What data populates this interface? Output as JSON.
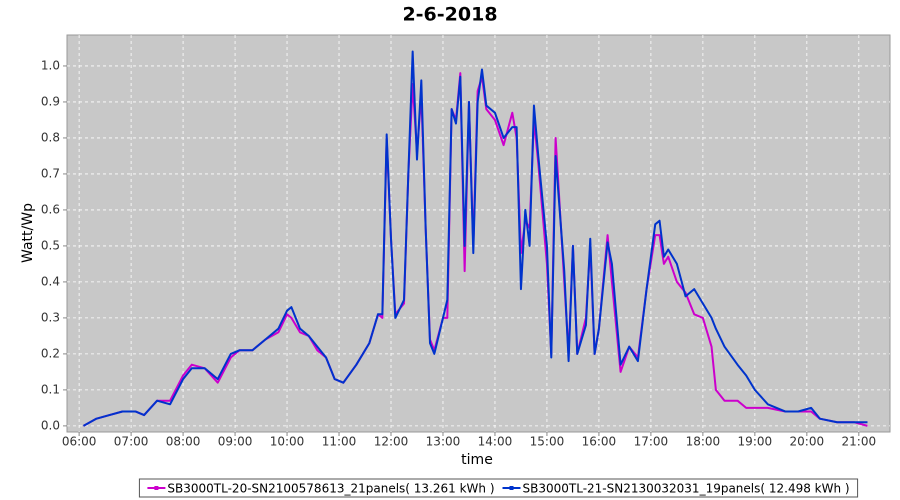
{
  "chart_data": {
    "type": "line",
    "title": "2-6-2018",
    "x_label": "time",
    "y_label": "Watt/Wp",
    "x": [
      "06:05",
      "06:20",
      "06:35",
      "06:50",
      "07:05",
      "07:15",
      "07:30",
      "07:45",
      "08:00",
      "08:10",
      "08:25",
      "08:40",
      "08:55",
      "09:05",
      "09:20",
      "09:35",
      "09:50",
      "10:00",
      "10:05",
      "10:15",
      "10:25",
      "10:35",
      "10:45",
      "10:55",
      "11:05",
      "11:20",
      "11:35",
      "11:45",
      "11:50",
      "11:55",
      "12:00",
      "12:05",
      "12:15",
      "12:20",
      "12:25",
      "12:30",
      "12:35",
      "12:40",
      "12:45",
      "12:50",
      "13:00",
      "13:05",
      "13:10",
      "13:15",
      "13:20",
      "13:25",
      "13:30",
      "13:35",
      "13:40",
      "13:45",
      "13:50",
      "14:00",
      "14:10",
      "14:20",
      "14:25",
      "14:30",
      "14:35",
      "14:40",
      "14:45",
      "14:50",
      "15:00",
      "15:05",
      "15:10",
      "15:20",
      "15:25",
      "15:30",
      "15:35",
      "15:45",
      "15:50",
      "15:55",
      "16:00",
      "16:10",
      "16:15",
      "16:25",
      "16:35",
      "16:45",
      "16:55",
      "17:05",
      "17:10",
      "17:15",
      "17:20",
      "17:30",
      "17:40",
      "17:50",
      "18:00",
      "18:10",
      "18:15",
      "18:25",
      "18:40",
      "18:50",
      "19:00",
      "19:15",
      "19:35",
      "19:50",
      "20:05",
      "20:15",
      "20:35",
      "20:55",
      "21:10"
    ],
    "series": [
      {
        "name": "SB3000TL-20-SN2100578613_21panels( 13.261 kWh )",
        "color": "#cc00cc",
        "values": [
          0.0,
          0.02,
          0.03,
          0.04,
          0.04,
          0.03,
          0.07,
          0.07,
          0.14,
          0.17,
          0.16,
          0.12,
          0.19,
          0.21,
          0.21,
          0.24,
          0.26,
          0.31,
          0.3,
          0.26,
          0.25,
          0.21,
          0.19,
          0.13,
          0.12,
          0.17,
          0.23,
          0.31,
          0.3,
          0.8,
          0.52,
          0.31,
          0.34,
          0.7,
          0.95,
          0.76,
          0.92,
          0.55,
          0.24,
          0.21,
          0.3,
          0.3,
          0.88,
          0.85,
          0.98,
          0.43,
          0.9,
          0.5,
          0.93,
          0.97,
          0.88,
          0.85,
          0.78,
          0.87,
          0.8,
          0.48,
          0.57,
          0.55,
          0.85,
          0.73,
          0.45,
          0.2,
          0.8,
          0.4,
          0.2,
          0.5,
          0.2,
          0.3,
          0.5,
          0.2,
          0.27,
          0.53,
          0.4,
          0.15,
          0.22,
          0.19,
          0.38,
          0.53,
          0.53,
          0.45,
          0.47,
          0.4,
          0.37,
          0.31,
          0.3,
          0.22,
          0.1,
          0.07,
          0.07,
          0.05,
          0.05,
          0.05,
          0.04,
          0.04,
          0.04,
          0.02,
          0.01,
          0.01,
          0.0
        ]
      },
      {
        "name": "SB3000TL-21-SN2130032031_19panels( 12.498 kWh )",
        "color": "#0033cc",
        "values": [
          0.0,
          0.02,
          0.03,
          0.04,
          0.04,
          0.03,
          0.07,
          0.06,
          0.13,
          0.16,
          0.16,
          0.13,
          0.2,
          0.21,
          0.21,
          0.24,
          0.27,
          0.32,
          0.33,
          0.27,
          0.25,
          0.22,
          0.19,
          0.13,
          0.12,
          0.17,
          0.23,
          0.31,
          0.31,
          0.81,
          0.52,
          0.3,
          0.35,
          0.7,
          1.04,
          0.74,
          0.96,
          0.55,
          0.23,
          0.2,
          0.3,
          0.35,
          0.88,
          0.84,
          0.97,
          0.5,
          0.9,
          0.48,
          0.9,
          0.99,
          0.89,
          0.87,
          0.8,
          0.83,
          0.83,
          0.38,
          0.6,
          0.5,
          0.89,
          0.75,
          0.5,
          0.19,
          0.75,
          0.43,
          0.18,
          0.5,
          0.2,
          0.28,
          0.52,
          0.2,
          0.27,
          0.51,
          0.45,
          0.17,
          0.22,
          0.18,
          0.38,
          0.56,
          0.57,
          0.47,
          0.49,
          0.45,
          0.36,
          0.38,
          0.34,
          0.3,
          0.27,
          0.22,
          0.17,
          0.14,
          0.1,
          0.06,
          0.04,
          0.04,
          0.05,
          0.02,
          0.01,
          0.01,
          0.01
        ]
      }
    ],
    "xlim": [
      "05:46",
      "21:36"
    ],
    "xticks": [
      "06:00",
      "07:00",
      "08:00",
      "09:00",
      "10:00",
      "11:00",
      "12:00",
      "13:00",
      "14:00",
      "15:00",
      "16:00",
      "17:00",
      "18:00",
      "19:00",
      "20:00",
      "21:00"
    ],
    "ylim": [
      -0.017,
      1.086
    ],
    "yticks": [
      {
        "value": 0,
        "label": "0.0"
      },
      0.1,
      0.2,
      0.3,
      0.4,
      0.5,
      0.6,
      0.7,
      0.8,
      0.9,
      {
        "value": 1,
        "label": "1.0"
      }
    ],
    "grid": true,
    "legend": "bottom"
  }
}
